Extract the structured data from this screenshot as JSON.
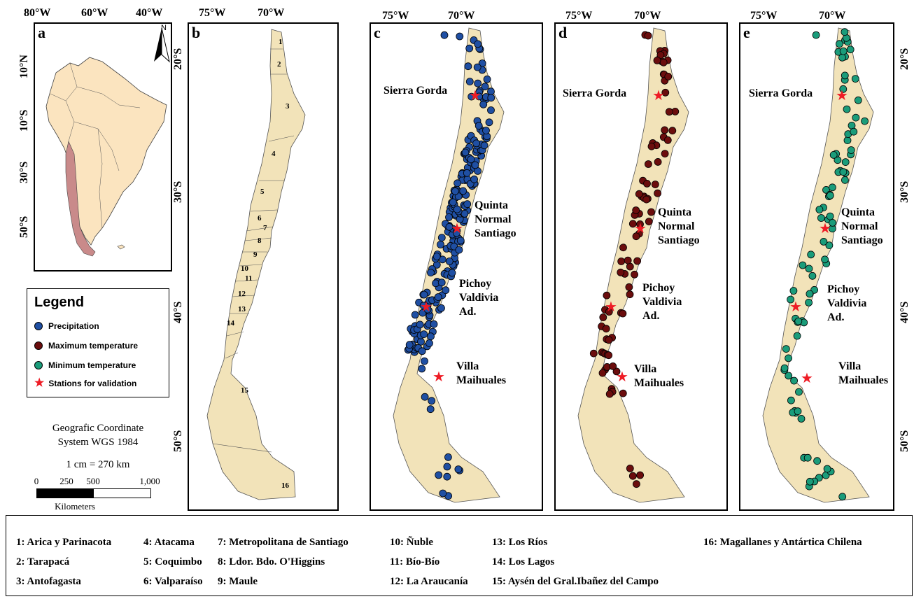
{
  "panels": {
    "a": {
      "letter": "a",
      "top_ticks": [
        "80°W",
        "60°W",
        "40°W"
      ],
      "left_ticks": [
        "10°N",
        "10°S",
        "30°S",
        "50°S"
      ],
      "north": "N"
    },
    "b": {
      "letter": "b",
      "top_ticks": [
        "75°W",
        "70°W"
      ],
      "right_ticks": [
        "20°S",
        "30°S",
        "40°S",
        "50°S"
      ]
    },
    "c": {
      "letter": "c",
      "top_ticks": [
        "75°W",
        "70°W"
      ],
      "stations": [
        "Sierra Gorda",
        "Quinta Normal Santiago",
        "Pichoy Valdivia Ad.",
        "Villa Maihuales"
      ]
    },
    "d": {
      "letter": "d",
      "top_ticks": [
        "75°W",
        "70°W"
      ],
      "stations": [
        "Sierra Gorda",
        "Quinta Normal Santiago",
        "Pichoy Valdivia Ad.",
        "Villa Maihuales"
      ]
    },
    "e": {
      "letter": "e",
      "top_ticks": [
        "75°W",
        "70°W"
      ],
      "right_ticks": [
        "20°S",
        "30°S",
        "40°S",
        "50°S"
      ],
      "stations": [
        "Sierra Gorda",
        "Quinta Normal Santiago",
        "Pichoy Valdivia Ad.",
        "Villa Maihuales"
      ]
    }
  },
  "station_lines": {
    "sierra": [
      "Sierra Gorda"
    ],
    "quinta": [
      "Quinta",
      "Normal",
      "Santiago"
    ],
    "pichoy": [
      "Pichoy",
      "Valdivia",
      "Ad."
    ],
    "villa": [
      "Villa",
      "Maihuales"
    ]
  },
  "region_numbers": [
    "1",
    "2",
    "3",
    "4",
    "5",
    "6",
    "7",
    "8",
    "9",
    "10",
    "11",
    "12",
    "13",
    "14",
    "15",
    "16"
  ],
  "legend": {
    "title": "Legend",
    "items": [
      {
        "label": "Precipitation",
        "color": "#1f4fa3"
      },
      {
        "label": "Maximum temperature",
        "color": "#6b0d0d"
      },
      {
        "label": "Minimum temperature",
        "color": "#1a9c7a"
      },
      {
        "label": "Stations for validation",
        "color": "#ee1c25"
      }
    ]
  },
  "coord_system": {
    "line1": "Geografic Coordinate",
    "line2": "System WGS 1984"
  },
  "scale": {
    "ratio": "1 cm = 270 km",
    "ticks": [
      "0",
      "250",
      "500",
      "1,000"
    ],
    "unit": "Kilometers"
  },
  "regions": [
    "1: Arica y Parinacota",
    "2: Tarapacá",
    "3: Antofagasta",
    "4: Atacama",
    "5: Coquimbo",
    "6: Valparaíso",
    "7: Metropolitana de Santiago",
    "8: Ldor. Bdo. O'Higgins",
    "9: Maule",
    "10: Ñuble",
    "11: Bío-Bío",
    "12: La Araucanía",
    "13: Los Ríos",
    "14: Los Lagos",
    "15: Aysén del Gral.Ibañez del Campo",
    "16: Magallanes y Antártica Chilena"
  ],
  "colors": {
    "land": "#f2e3b9",
    "chile_highlight": "#c98a8a",
    "continent": "#fbe4bf",
    "star": "#ee1c25"
  }
}
